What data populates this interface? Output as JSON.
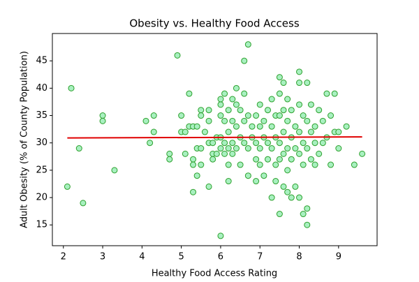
{
  "chart_data": {
    "type": "scatter",
    "title": "Obesity vs. Healthy Food Access",
    "x_label": "Healthy Food Access Rating",
    "y_label": "Adult Obesity (% of County Population)",
    "xlim": [
      1.72,
      9.98
    ],
    "ylim": [
      11.2,
      50
    ],
    "xticks": [
      2,
      3,
      4,
      5,
      6,
      7,
      8,
      9
    ],
    "yticks": [
      15,
      20,
      25,
      30,
      35,
      40,
      45
    ],
    "series": [
      {
        "color": "#a8f0c0",
        "edgecolor": "#2ca02c",
        "x": [
          2.1,
          2.2,
          2.4,
          2.5,
          3,
          3,
          3.3,
          4.1,
          4.2,
          4.3,
          4.3,
          4.7,
          4.7,
          4.9,
          5,
          5,
          5.1,
          5.1,
          5.2,
          5.2,
          5.3,
          5.3,
          5.3,
          5.3,
          5.4,
          5.4,
          5.4,
          5.5,
          5.5,
          5.5,
          5.5,
          5.6,
          5.7,
          5.7,
          5.7,
          5.7,
          5.8,
          5.8,
          5.8,
          5.9,
          5.9,
          6,
          6,
          6,
          6,
          6,
          6,
          6.1,
          6.1,
          6.1,
          6.1,
          6.2,
          6.2,
          6.2,
          6.2,
          6.2,
          6.3,
          6.3,
          6.3,
          6.3,
          6.4,
          6.4,
          6.4,
          6.4,
          6.5,
          6.5,
          6.5,
          6.6,
          6.6,
          6.6,
          6.6,
          6.7,
          6.7,
          6.7,
          6.7,
          6.8,
          6.8,
          6.9,
          6.9,
          6.9,
          6.9,
          7,
          7,
          7,
          7,
          7.1,
          7.1,
          7.1,
          7.2,
          7.2,
          7.2,
          7.3,
          7.3,
          7.3,
          7.3,
          7.4,
          7.4,
          7.4,
          7.4,
          7.5,
          7.5,
          7.5,
          7.5,
          7.5,
          7.5,
          7.6,
          7.6,
          7.6,
          7.6,
          7.6,
          7.7,
          7.7,
          7.7,
          7.7,
          7.7,
          7.8,
          7.8,
          7.8,
          7.8,
          7.9,
          7.9,
          7.9,
          8,
          8,
          8,
          8,
          8,
          8,
          8.1,
          8.1,
          8.1,
          8.1,
          8.2,
          8.2,
          8.2,
          8.2,
          8.2,
          8.3,
          8.3,
          8.3,
          8.4,
          8.4,
          8.4,
          8.5,
          8.5,
          8.6,
          8.6,
          8.7,
          8.7,
          8.8,
          8.8,
          8.9,
          8.9,
          9,
          9,
          9.2,
          9.4,
          9.6
        ],
        "y": [
          22,
          40,
          29,
          19,
          35,
          34,
          25,
          34,
          30,
          35,
          32,
          28,
          27,
          46,
          35,
          32,
          32,
          28,
          39,
          33,
          33,
          27,
          26,
          21,
          33,
          29,
          24,
          36,
          35,
          29,
          26,
          32,
          36,
          34,
          30,
          22,
          30,
          28,
          27,
          31,
          28,
          38,
          37,
          35,
          31,
          29,
          13,
          39,
          34,
          30,
          28,
          36,
          32,
          29,
          26,
          23,
          38,
          34,
          30,
          28,
          40,
          37,
          33,
          29,
          36,
          31,
          26,
          45,
          39,
          34,
          30,
          48,
          35,
          29,
          24,
          33,
          31,
          35,
          30,
          27,
          23,
          37,
          33,
          29,
          26,
          34,
          31,
          24,
          36,
          30,
          27,
          38,
          33,
          29,
          20,
          35,
          31,
          26,
          23,
          42,
          39,
          35,
          30,
          27,
          17,
          41,
          36,
          32,
          28,
          22,
          38,
          34,
          29,
          25,
          21,
          36,
          31,
          27,
          20,
          33,
          29,
          22,
          43,
          41,
          37,
          32,
          28,
          20,
          35,
          30,
          26,
          17,
          41,
          34,
          29,
          18,
          15,
          37,
          32,
          27,
          33,
          30,
          26,
          36,
          28,
          34,
          30,
          39,
          31,
          35,
          26,
          39,
          32,
          32,
          29,
          33,
          26,
          28
        ]
      }
    ],
    "fit": {
      "x": [
        2.1,
        9.6
      ],
      "y": [
        30.9,
        31.1
      ],
      "color": "#e00000"
    }
  }
}
